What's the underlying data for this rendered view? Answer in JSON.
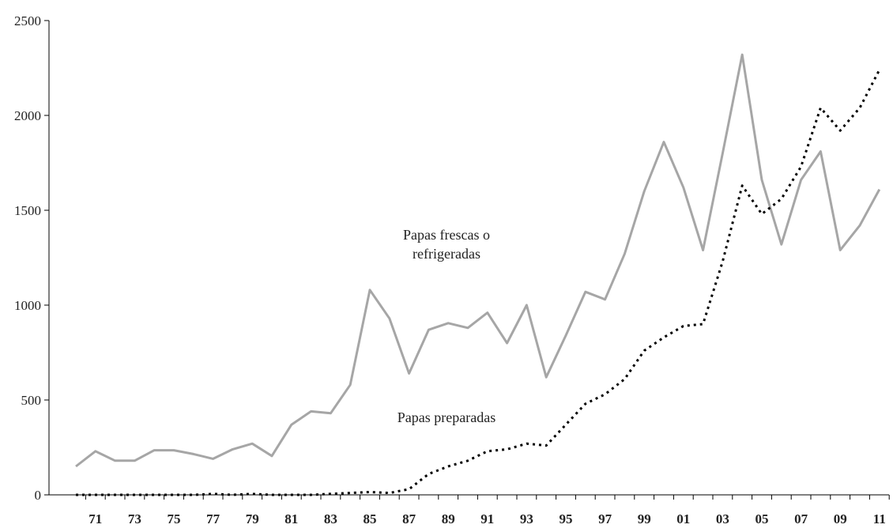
{
  "chart_data": {
    "type": "line",
    "categories": [
      null,
      "71",
      null,
      "73",
      null,
      "75",
      null,
      "77",
      null,
      "79",
      null,
      "81",
      null,
      "83",
      null,
      "85",
      null,
      "87",
      null,
      "89",
      null,
      "91",
      null,
      "93",
      null,
      "95",
      null,
      "97",
      null,
      "99",
      null,
      "01",
      null,
      "03",
      null,
      "05",
      null,
      "07",
      null,
      "09",
      null,
      "11"
    ],
    "series": [
      {
        "name": "Papas frescas o refrigeradas",
        "color": "#a6a6a6",
        "style": "solid",
        "values": [
          150,
          230,
          180,
          180,
          235,
          235,
          215,
          190,
          240,
          270,
          205,
          370,
          440,
          430,
          580,
          1080,
          930,
          640,
          870,
          905,
          880,
          960,
          800,
          1000,
          620,
          840,
          1070,
          1030,
          1270,
          1600,
          1860,
          1620,
          1290,
          1800,
          2320,
          1660,
          1320,
          1660,
          1810,
          1290,
          1420,
          1610
        ]
      },
      {
        "name": "Papas preparadas",
        "color": "#000000",
        "style": "dotted",
        "values": [
          0,
          0,
          0,
          0,
          0,
          0,
          0,
          5,
          0,
          5,
          0,
          0,
          0,
          5,
          10,
          15,
          10,
          30,
          110,
          150,
          180,
          230,
          240,
          270,
          260,
          370,
          480,
          530,
          610,
          760,
          830,
          890,
          900,
          1230,
          1630,
          1480,
          1560,
          1730,
          2040,
          1920,
          2040,
          2240
        ]
      }
    ],
    "ylim": [
      0,
      2500
    ],
    "yticks": [
      0,
      500,
      1000,
      1500,
      2000,
      2500
    ],
    "grid": false
  }
}
